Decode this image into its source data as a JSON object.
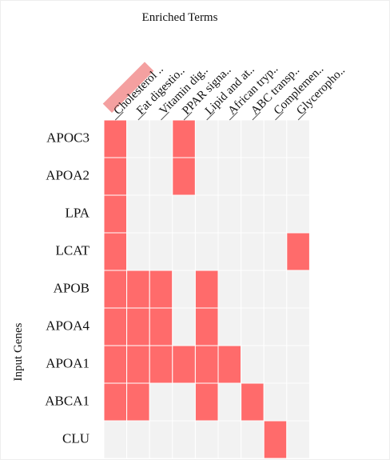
{
  "chart_data": {
    "type": "heatmap",
    "title": "Enriched Terms",
    "y_label": "Input Genes",
    "x": [
      "Cholesterol ..",
      "Fat digestio..",
      "Vitamin dig..",
      "PPAR signa..",
      "Lipid and at..",
      "African tryp..",
      "ABC transp..",
      "Complemen..",
      "Glyceropho.."
    ],
    "y": [
      "APOC3",
      "APOA2",
      "LPA",
      "LCAT",
      "APOB",
      "APOA4",
      "APOA1",
      "ABCA1",
      "CLU"
    ],
    "values": [
      [
        1,
        0,
        0,
        1,
        0,
        0,
        0,
        0,
        0
      ],
      [
        1,
        0,
        0,
        1,
        0,
        0,
        0,
        0,
        0
      ],
      [
        1,
        0,
        0,
        0,
        0,
        0,
        0,
        0,
        0
      ],
      [
        1,
        0,
        0,
        0,
        0,
        0,
        0,
        0,
        1
      ],
      [
        1,
        1,
        1,
        0,
        1,
        0,
        0,
        0,
        0
      ],
      [
        1,
        1,
        1,
        0,
        1,
        0,
        0,
        0,
        0
      ],
      [
        1,
        1,
        1,
        1,
        1,
        1,
        0,
        0,
        0
      ],
      [
        1,
        1,
        0,
        0,
        1,
        0,
        1,
        0,
        0
      ],
      [
        0,
        0,
        0,
        0,
        0,
        0,
        0,
        1,
        0
      ]
    ],
    "color": "#ff6b6b",
    "empty_color": "#f2f2f2"
  }
}
